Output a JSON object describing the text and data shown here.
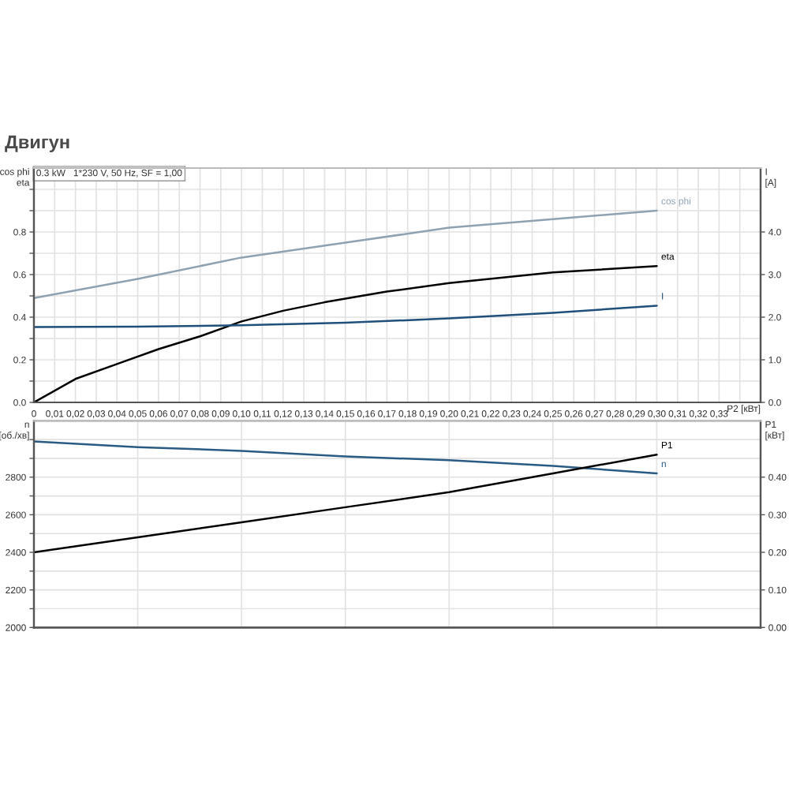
{
  "chart_data": [
    {
      "type": "line",
      "title": "Двигун",
      "annotations": [
        "0.3 kW   1*230 V, 50 Hz, SF = 1,00"
      ],
      "xlabel": "P2 [кВт]",
      "ylabel": "cos phi\neta",
      "y2label": "I\n[A]",
      "xlim": [
        0,
        0.35
      ],
      "xticks": [
        0,
        {
          "value": 0.01,
          "label": "0,01"
        },
        {
          "value": 0.02,
          "label": "0,02"
        },
        {
          "value": 0.03,
          "label": "0,03"
        },
        {
          "value": 0.04,
          "label": "0,04"
        },
        {
          "value": 0.05,
          "label": "0,05"
        },
        {
          "value": 0.06,
          "label": "0,06"
        },
        {
          "value": 0.07,
          "label": "0,07"
        },
        {
          "value": 0.08,
          "label": "0,08"
        },
        {
          "value": 0.09,
          "label": "0,09"
        },
        {
          "value": 0.1,
          "label": "0,10"
        },
        {
          "value": 0.11,
          "label": "0,11"
        },
        {
          "value": 0.12,
          "label": "0,12"
        },
        {
          "value": 0.13,
          "label": "0,13"
        },
        {
          "value": 0.14,
          "label": "0,14"
        },
        {
          "value": 0.15,
          "label": "0,15"
        },
        {
          "value": 0.16,
          "label": "0,16"
        },
        {
          "value": 0.17,
          "label": "0,17"
        },
        {
          "value": 0.18,
          "label": "0,18"
        },
        {
          "value": 0.19,
          "label": "0,19"
        },
        {
          "value": 0.2,
          "label": "0,20"
        },
        {
          "value": 0.21,
          "label": "0,21"
        },
        {
          "value": 0.22,
          "label": "0,22"
        },
        {
          "value": 0.23,
          "label": "0,23"
        },
        {
          "value": 0.24,
          "label": "0,24"
        },
        {
          "value": 0.25,
          "label": "0,25"
        },
        {
          "value": 0.26,
          "label": "0,26"
        },
        {
          "value": 0.27,
          "label": "0,27"
        },
        {
          "value": 0.28,
          "label": "0,28"
        },
        {
          "value": 0.29,
          "label": "0,29"
        },
        {
          "value": 0.3,
          "label": "0,30"
        },
        {
          "value": 0.31,
          "label": "0,31"
        },
        {
          "value": 0.32,
          "label": "0,32"
        },
        {
          "value": 0.33,
          "label": "0,33"
        },
        {
          "value": 0.34,
          "label": null
        }
      ],
      "ylim": [
        0,
        1.1
      ],
      "yticks": [
        {
          "value": 0,
          "label": "0.0"
        },
        {
          "value": 0.1,
          "label": null
        },
        0.2,
        {
          "value": 0.3,
          "label": null
        },
        0.4,
        {
          "value": 0.5,
          "label": null
        },
        0.6,
        {
          "value": 0.7,
          "label": null
        },
        0.8,
        {
          "value": 0.9,
          "label": null
        },
        {
          "value": 1.0,
          "label": null
        }
      ],
      "y2lim": [
        0,
        5.5
      ],
      "y2ticks": [
        {
          "value": 0,
          "label": "0.0"
        },
        {
          "value": 1,
          "label": "1.0"
        },
        {
          "value": 2,
          "label": "2.0"
        },
        {
          "value": 3,
          "label": "3.0"
        },
        {
          "value": 4,
          "label": "4.0"
        }
      ],
      "grid": true,
      "series": [
        {
          "name": "cos phi",
          "color": "#8ea2b2",
          "x": [
            0,
            0.05,
            0.1,
            0.15,
            0.2,
            0.25,
            0.3
          ],
          "values": [
            0.49,
            0.58,
            0.68,
            0.75,
            0.82,
            0.86,
            0.9
          ]
        },
        {
          "name": "eta",
          "color": "#000000",
          "x": [
            0,
            0.02,
            0.04,
            0.06,
            0.08,
            0.1,
            0.12,
            0.14,
            0.17,
            0.2,
            0.25,
            0.3
          ],
          "values": [
            0,
            0.11,
            0.18,
            0.25,
            0.31,
            0.38,
            0.43,
            0.47,
            0.52,
            0.56,
            0.61,
            0.64
          ]
        },
        {
          "name": "I",
          "color": "#1f4f7a",
          "axis": "y2",
          "x": [
            0,
            0.05,
            0.1,
            0.15,
            0.2,
            0.25,
            0.3
          ],
          "values": [
            1.77,
            1.78,
            1.81,
            1.87,
            1.97,
            2.1,
            2.27
          ]
        }
      ]
    },
    {
      "type": "line",
      "ylabel": "n\n[об./хв]",
      "y2label": "P1\n[кВт]",
      "xlim": [
        0,
        0.35
      ],
      "xticks": [
        {
          "value": 0,
          "label": null
        },
        {
          "value": 0.05,
          "label": null
        },
        {
          "value": 0.1,
          "label": null
        },
        {
          "value": 0.15,
          "label": null
        },
        {
          "value": 0.2,
          "label": null
        },
        {
          "value": 0.25,
          "label": null
        },
        {
          "value": 0.3,
          "label": null
        }
      ],
      "tick_labels": "y",
      "ylim": [
        2000,
        3100
      ],
      "yticks": [
        2000,
        {
          "value": 2100,
          "label": null
        },
        2200,
        {
          "value": 2300,
          "label": null
        },
        2400,
        {
          "value": 2500,
          "label": null
        },
        2600,
        {
          "value": 2700,
          "label": null
        },
        2800,
        {
          "value": 2900,
          "label": null
        },
        {
          "value": 3000,
          "label": null
        }
      ],
      "y2lim": [
        0,
        0.55
      ],
      "y2ticks": [
        {
          "value": 0,
          "label": "0.00"
        },
        {
          "value": 0.1,
          "label": "0.10"
        },
        {
          "value": 0.2,
          "label": "0.20"
        },
        {
          "value": 0.3,
          "label": "0.30"
        },
        {
          "value": 0.4,
          "label": "0.40"
        }
      ],
      "grid": true,
      "series": [
        {
          "name": "n",
          "color": "#2a5b85",
          "x": [
            0,
            0.05,
            0.1,
            0.15,
            0.2,
            0.25,
            0.3
          ],
          "values": [
            2990,
            2960,
            2940,
            2910,
            2890,
            2860,
            2820
          ]
        },
        {
          "name": "P1",
          "color": "#000000",
          "axis": "y2",
          "x": [
            0,
            0.05,
            0.1,
            0.15,
            0.2,
            0.25,
            0.3
          ],
          "values": [
            0.2,
            0.24,
            0.28,
            0.32,
            0.36,
            0.41,
            0.46
          ]
        }
      ]
    }
  ]
}
